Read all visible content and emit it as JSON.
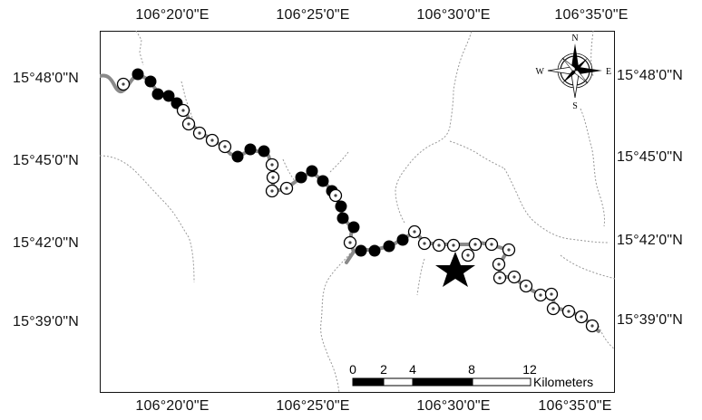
{
  "map": {
    "longitude_labels": [
      "106°20'0\"E",
      "106°25'0\"E",
      "106°30'0\"E",
      "106°35'0\"E"
    ],
    "latitude_labels": [
      "15°48'0\"N",
      "15°45'0\"N",
      "15°42'0\"N",
      "15°39'0\"N"
    ],
    "compass": {
      "north": "N",
      "south": "S",
      "east": "E",
      "west": "W"
    },
    "scale_bar": {
      "ticks": [
        "0",
        "2",
        "4",
        "8",
        "12"
      ],
      "unit": "Kilometers"
    },
    "legend_marks": {
      "filled_circle_color": "#000000",
      "open_circle_color": "#000000",
      "river_color": "#888888",
      "boundary_color": "#999999",
      "star_color": "#000000"
    }
  }
}
